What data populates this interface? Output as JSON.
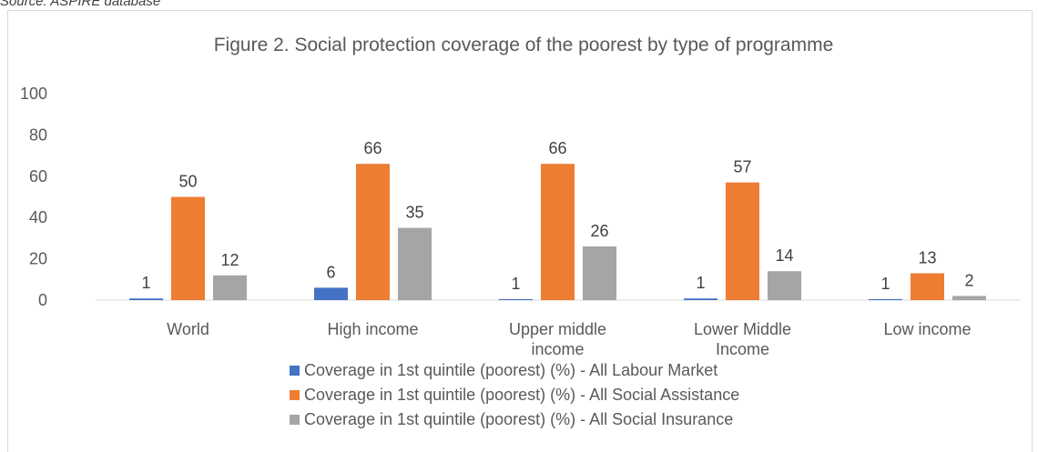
{
  "source_note": "Source: ASPIRE database",
  "chart_data": {
    "type": "bar",
    "title": "Figure 2. Social protection coverage of the poorest by type of programme",
    "categories": [
      "World",
      "High income",
      "Upper middle income",
      "Lower Middle Income",
      "Low income"
    ],
    "category_lines": [
      [
        "World"
      ],
      [
        "High income"
      ],
      [
        "Upper middle",
        "income"
      ],
      [
        "Lower Middle",
        "Income"
      ],
      [
        "Low income"
      ]
    ],
    "series": [
      {
        "name": "Coverage in 1st quintile (poorest) (%) - All Labour Market",
        "color": "#4472c4",
        "values": [
          0.8,
          6,
          0.5,
          0.8,
          0.5
        ],
        "labels": [
          "1",
          "6",
          "1",
          "1",
          "1"
        ]
      },
      {
        "name": "Coverage in 1st quintile (poorest) (%) - All Social Assistance",
        "color": "#ed7d31",
        "values": [
          50,
          66,
          66,
          57,
          13
        ],
        "labels": [
          "50",
          "66",
          "66",
          "57",
          "13"
        ]
      },
      {
        "name": "Coverage in 1st quintile (poorest) (%) - All Social Insurance",
        "color": "#a5a5a5",
        "values": [
          12,
          35,
          26,
          14,
          2
        ],
        "labels": [
          "12",
          "35",
          "26",
          "14",
          "2"
        ]
      }
    ],
    "ylim": [
      0,
      100
    ],
    "yticks": [
      0,
      20,
      40,
      60,
      80,
      100
    ],
    "grid": false,
    "legend_position": "bottom"
  }
}
